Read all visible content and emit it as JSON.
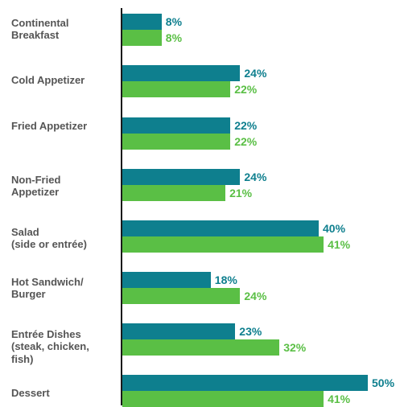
{
  "chart_data": {
    "type": "bar",
    "orientation": "horizontal",
    "categories": [
      "Continental\nBreakfast",
      "Cold Appetizer",
      "Fried Appetizer",
      "Non-Fried\nAppetizer",
      "Salad\n(side or entrée)",
      "Hot Sandwich/\nBurger",
      "Entrée Dishes\n(steak, chicken,\nfish)",
      "Dessert"
    ],
    "series": [
      {
        "color": "#0e7f8e",
        "values": [
          8,
          24,
          22,
          24,
          40,
          18,
          23,
          50
        ],
        "labels": [
          "8%",
          "24%",
          "22%",
          "24%",
          "40%",
          "18%",
          "23%",
          "50%"
        ]
      },
      {
        "color": "#5abf45",
        "values": [
          8,
          22,
          22,
          21,
          41,
          24,
          32,
          41
        ],
        "labels": [
          "8%",
          "22%",
          "22%",
          "21%",
          "41%",
          "24%",
          "32%",
          "41%"
        ]
      }
    ],
    "unit": "%",
    "xlim": [
      0,
      100
    ],
    "grid": false,
    "legend": "none"
  }
}
